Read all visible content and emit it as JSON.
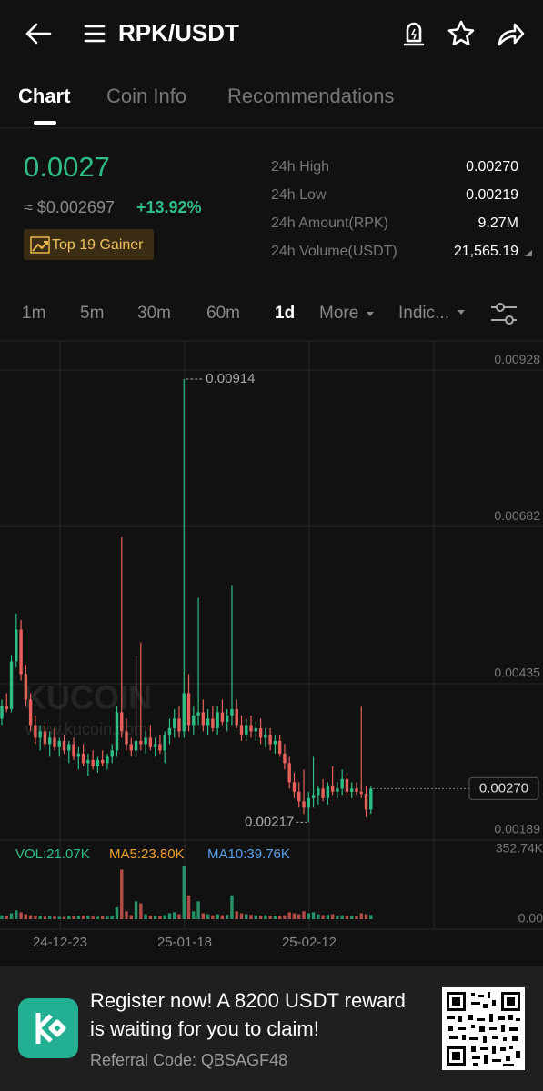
{
  "header": {
    "title": "RPK/USDT"
  },
  "tabs": [
    "Chart",
    "Coin Info",
    "Recommendations"
  ],
  "price": {
    "last": "0.0027",
    "fiat": "≈ $0.002697",
    "change": "+13.92%",
    "badge": "Top 19 Gainer"
  },
  "stats": [
    {
      "label": "24h High",
      "value": "0.00270"
    },
    {
      "label": "24h Low",
      "value": "0.00219"
    },
    {
      "label": "24h Amount(RPK)",
      "value": "9.27M"
    },
    {
      "label": "24h Volume(USDT)",
      "value": "21,565.19"
    }
  ],
  "intervals": [
    "1m",
    "5m",
    "30m",
    "60m",
    "1d",
    "More",
    "Indic..."
  ],
  "chart": {
    "type": "candlestick",
    "ylim": [
      0.00189,
      0.00974
    ],
    "yticks": [
      0.00928,
      0.00682,
      0.00435,
      0.00189
    ],
    "max_price": 0.00914,
    "min_price": 0.00217,
    "last_price": {
      "value": 0.0027,
      "label": "0.00270"
    },
    "dates": [
      "24-12-23",
      "25-01-18",
      "25-02-12"
    ],
    "watermark": [
      "KUCOIN",
      "www.kucoin.com"
    ],
    "candles": [
      [
        0.0038,
        0.0041,
        0.0037,
        0.004
      ],
      [
        0.004,
        0.0042,
        0.0039,
        0.00395
      ],
      [
        0.00395,
        0.0048,
        0.0039,
        0.0047
      ],
      [
        0.0047,
        0.00545,
        0.0046,
        0.0052
      ],
      [
        0.0052,
        0.00535,
        0.0044,
        0.0045
      ],
      [
        0.0045,
        0.00465,
        0.004,
        0.0041
      ],
      [
        0.0041,
        0.0042,
        0.0036,
        0.0037
      ],
      [
        0.0037,
        0.00385,
        0.0034,
        0.0035
      ],
      [
        0.0035,
        0.0037,
        0.0033,
        0.0036
      ],
      [
        0.0036,
        0.00375,
        0.00335,
        0.0034
      ],
      [
        0.0034,
        0.0036,
        0.0032,
        0.0035
      ],
      [
        0.0035,
        0.00365,
        0.0033,
        0.00335
      ],
      [
        0.00335,
        0.0035,
        0.0032,
        0.00345
      ],
      [
        0.00345,
        0.00355,
        0.00325,
        0.0033
      ],
      [
        0.0033,
        0.00345,
        0.0031,
        0.0034
      ],
      [
        0.0034,
        0.0035,
        0.00315,
        0.0032
      ],
      [
        0.0032,
        0.00335,
        0.003,
        0.00325
      ],
      [
        0.00325,
        0.0034,
        0.00305,
        0.0031
      ],
      [
        0.0031,
        0.00325,
        0.0029,
        0.00315
      ],
      [
        0.00315,
        0.0033,
        0.003,
        0.00305
      ],
      [
        0.00305,
        0.0032,
        0.00295,
        0.00315
      ],
      [
        0.00315,
        0.0033,
        0.00305,
        0.0031
      ],
      [
        0.0031,
        0.00325,
        0.003,
        0.0032
      ],
      [
        0.0032,
        0.0034,
        0.0031,
        0.0033
      ],
      [
        0.0033,
        0.004,
        0.0032,
        0.0039
      ],
      [
        0.0039,
        0.00665,
        0.0035,
        0.0036
      ],
      [
        0.0036,
        0.0038,
        0.0033,
        0.0034
      ],
      [
        0.0034,
        0.0035,
        0.0032,
        0.0033
      ],
      [
        0.0033,
        0.0048,
        0.0032,
        0.00345
      ],
      [
        0.00345,
        0.005,
        0.0033,
        0.0034
      ],
      [
        0.0034,
        0.0036,
        0.00325,
        0.0035
      ],
      [
        0.0035,
        0.0037,
        0.0033,
        0.00335
      ],
      [
        0.00335,
        0.0035,
        0.0032,
        0.0034
      ],
      [
        0.0034,
        0.00355,
        0.00325,
        0.0033
      ],
      [
        0.0033,
        0.0036,
        0.0031,
        0.00355
      ],
      [
        0.00355,
        0.0038,
        0.0034,
        0.00365
      ],
      [
        0.00365,
        0.00395,
        0.0035,
        0.0038
      ],
      [
        0.0038,
        0.004,
        0.0035,
        0.0036
      ],
      [
        0.0036,
        0.00914,
        0.0035,
        0.0042
      ],
      [
        0.0042,
        0.0045,
        0.0036,
        0.0037
      ],
      [
        0.0037,
        0.004,
        0.00355,
        0.00385
      ],
      [
        0.00385,
        0.0057,
        0.0037,
        0.0039
      ],
      [
        0.0039,
        0.0041,
        0.0036,
        0.0037
      ],
      [
        0.0037,
        0.00395,
        0.00355,
        0.0038
      ],
      [
        0.0038,
        0.004,
        0.0036,
        0.00365
      ],
      [
        0.00365,
        0.004,
        0.00355,
        0.0039
      ],
      [
        0.0039,
        0.0041,
        0.0037,
        0.00375
      ],
      [
        0.00375,
        0.00395,
        0.0036,
        0.00385
      ],
      [
        0.00385,
        0.0059,
        0.0037,
        0.00395
      ],
      [
        0.00395,
        0.0041,
        0.00365,
        0.0037
      ],
      [
        0.0037,
        0.00385,
        0.00345,
        0.00355
      ],
      [
        0.00355,
        0.0038,
        0.00345,
        0.0037
      ],
      [
        0.0037,
        0.00385,
        0.0035,
        0.0036
      ],
      [
        0.0036,
        0.00375,
        0.00345,
        0.00365
      ],
      [
        0.00365,
        0.0038,
        0.0034,
        0.0035
      ],
      [
        0.0035,
        0.00365,
        0.00335,
        0.00355
      ],
      [
        0.00355,
        0.00365,
        0.0033,
        0.0034
      ],
      [
        0.0034,
        0.00355,
        0.00325,
        0.00345
      ],
      [
        0.00345,
        0.00355,
        0.0032,
        0.00325
      ],
      [
        0.00325,
        0.0034,
        0.003,
        0.0031
      ],
      [
        0.0031,
        0.0032,
        0.0027,
        0.0028
      ],
      [
        0.0028,
        0.00295,
        0.00255,
        0.00265
      ],
      [
        0.00265,
        0.0028,
        0.0024,
        0.0025
      ],
      [
        0.0025,
        0.003,
        0.0023,
        0.0024
      ],
      [
        0.0024,
        0.00265,
        0.00217,
        0.00255
      ],
      [
        0.00255,
        0.0032,
        0.0024,
        0.0026
      ],
      [
        0.0026,
        0.00275,
        0.00245,
        0.0027
      ],
      [
        0.0027,
        0.00285,
        0.0025,
        0.00255
      ],
      [
        0.00255,
        0.0028,
        0.00245,
        0.00275
      ],
      [
        0.00275,
        0.00305,
        0.0026,
        0.00265
      ],
      [
        0.00265,
        0.0028,
        0.00255,
        0.0027
      ],
      [
        0.0027,
        0.003,
        0.0026,
        0.00285
      ],
      [
        0.00285,
        0.00295,
        0.0026,
        0.00265
      ],
      [
        0.00265,
        0.0028,
        0.00255,
        0.0027
      ],
      [
        0.0027,
        0.0028,
        0.0026,
        0.00265
      ],
      [
        0.00265,
        0.004,
        0.00255,
        0.00262
      ],
      [
        0.00262,
        0.00275,
        0.00225,
        0.00237
      ],
      [
        0.00237,
        0.00275,
        0.0023,
        0.0027
      ]
    ],
    "volume": {
      "summary": [
        "VOL:21.07K",
        "MA5:23.80K",
        "MA10:39.76K"
      ],
      "ylim": [
        0,
        352740
      ],
      "yticks": [
        {
          "value": 352740,
          "label": "352.74K"
        },
        {
          "value": 0,
          "label": "0.00"
        }
      ],
      "values": [
        20000,
        15000,
        30000,
        45000,
        35000,
        25000,
        20000,
        18000,
        15000,
        12000,
        14000,
        13000,
        12000,
        11000,
        15000,
        14000,
        16000,
        18000,
        15000,
        13000,
        12000,
        14000,
        13000,
        15000,
        60000,
        250000,
        40000,
        20000,
        90000,
        80000,
        25000,
        18000,
        15000,
        14000,
        20000,
        30000,
        35000,
        25000,
        270000,
        120000,
        40000,
        90000,
        30000,
        25000,
        20000,
        25000,
        20000,
        22000,
        120000,
        40000,
        30000,
        25000,
        22000,
        20000,
        18000,
        20000,
        18000,
        17000,
        16000,
        20000,
        35000,
        30000,
        25000,
        40000,
        30000,
        35000,
        25000,
        20000,
        22000,
        25000,
        18000,
        20000,
        16000,
        15000,
        14000,
        30000,
        25000,
        21070
      ]
    }
  },
  "banner": {
    "text": [
      "Register now! A 8200 USDT reward",
      "is waiting for you to claim!"
    ],
    "referral": "Referral Code: QBSAGF48"
  }
}
